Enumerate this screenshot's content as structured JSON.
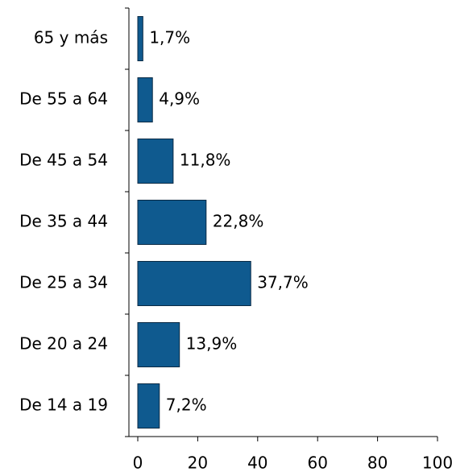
{
  "chart_data": {
    "type": "hbar",
    "categories": [
      "65 y más",
      "De 55 a 64",
      "De 45 a 54",
      "De 35 a 44",
      "De 25 a 34",
      "De 20 a 24",
      "De 14 a 19"
    ],
    "values": [
      1.7,
      4.9,
      11.8,
      22.8,
      37.7,
      13.9,
      7.2
    ],
    "value_labels": [
      "1,7%",
      "4,9%",
      "11,8%",
      "22,8%",
      "37,7%",
      "13,9%",
      "7,2%"
    ],
    "color": "#0f5a8f",
    "xlim": [
      0,
      100
    ],
    "xticks": [
      0,
      20,
      40,
      60,
      80,
      100
    ]
  }
}
